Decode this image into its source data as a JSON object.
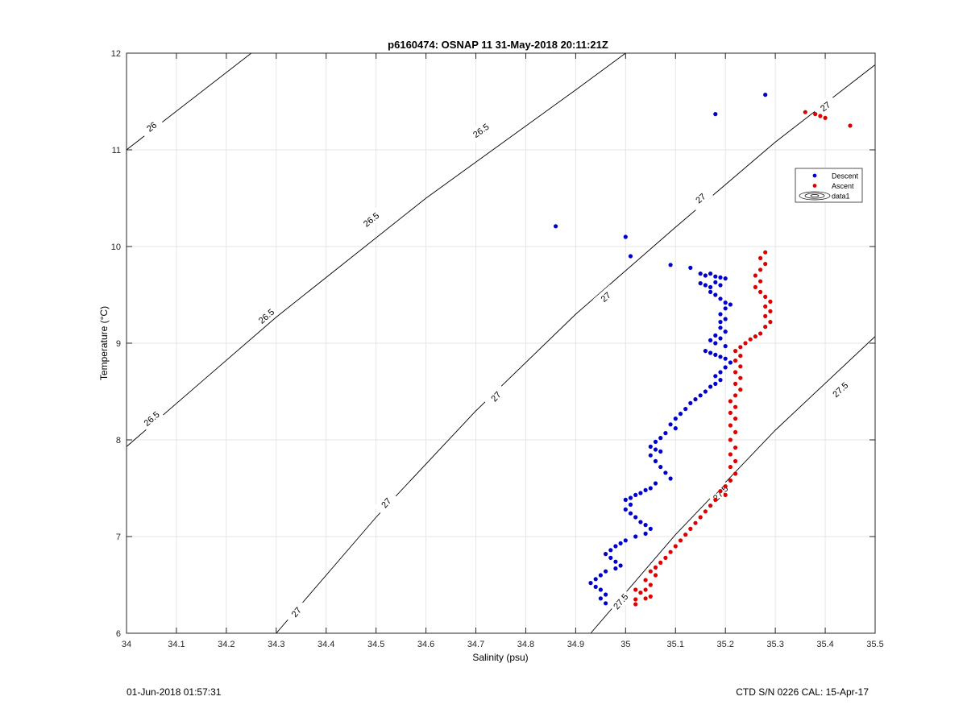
{
  "figure": {
    "footer_left": "01-Jun-2018 01:57:31",
    "footer_right": "CTD S/N 0226  CAL: 15-Apr-17"
  },
  "chart_data": {
    "type": "scatter",
    "title": "p6160474: OSNAP 11 31-May-2018 20:11:21Z",
    "xlabel": "Salinity (psu)",
    "ylabel": "Temperature (°C)",
    "xlim": [
      34,
      35.5
    ],
    "ylim": [
      6,
      12
    ],
    "xticks": [
      34,
      34.1,
      34.2,
      34.3,
      34.4,
      34.5,
      34.6,
      34.7,
      34.8,
      34.9,
      35,
      35.1,
      35.2,
      35.3,
      35.4,
      35.5
    ],
    "xtick_labels": [
      "34",
      "34.1",
      "34.2",
      "34.3",
      "34.4",
      "34.5",
      "34.6",
      "34.7",
      "34.8",
      "34.9",
      "35",
      "35.1",
      "35.2",
      "35.3",
      "35.4",
      "35.5"
    ],
    "yticks": [
      6,
      7,
      8,
      9,
      10,
      11,
      12
    ],
    "ytick_labels": [
      "6",
      "7",
      "8",
      "9",
      "10",
      "11",
      "12"
    ],
    "grid": true,
    "legend": {
      "placement": "right",
      "entries": [
        {
          "name": "Descent",
          "marker": "dot",
          "color": "#0000cc"
        },
        {
          "name": "Ascent",
          "marker": "dot",
          "color": "#dd0000"
        },
        {
          "name": "data1",
          "marker": "contour"
        }
      ]
    },
    "contours": [
      {
        "level": 26,
        "label": "26",
        "points": [
          [
            34.0,
            11.0
          ],
          [
            34.25,
            12.0
          ]
        ],
        "labels_at": [
          [
            34.05,
            11.24
          ]
        ]
      },
      {
        "level": 26.5,
        "label": "26.5",
        "points": [
          [
            34.0,
            7.93
          ],
          [
            34.3,
            9.27
          ],
          [
            34.6,
            10.5
          ],
          [
            34.9,
            11.62
          ],
          [
            35.0,
            12.0
          ]
        ],
        "labels_at": [
          [
            34.05,
            8.22
          ],
          [
            34.28,
            9.28
          ],
          [
            34.49,
            10.28
          ],
          [
            34.71,
            11.2
          ]
        ]
      },
      {
        "level": 27,
        "label": "27",
        "points": [
          [
            34.3,
            6.0
          ],
          [
            34.5,
            7.2
          ],
          [
            34.7,
            8.3
          ],
          [
            34.9,
            9.3
          ],
          [
            35.1,
            10.2
          ],
          [
            35.3,
            11.08
          ],
          [
            35.5,
            11.88
          ]
        ],
        "labels_at": [
          [
            34.34,
            6.22
          ],
          [
            34.52,
            7.35
          ],
          [
            34.74,
            8.45
          ],
          [
            34.96,
            9.48
          ],
          [
            35.15,
            10.5
          ],
          [
            35.4,
            11.45
          ]
        ]
      },
      {
        "level": 27.5,
        "label": "27.5",
        "points": [
          [
            34.93,
            6.0
          ],
          [
            35.1,
            7.02
          ],
          [
            35.3,
            8.1
          ],
          [
            35.5,
            9.07
          ]
        ],
        "labels_at": [
          [
            34.99,
            6.33
          ],
          [
            35.19,
            7.45
          ],
          [
            35.43,
            8.52
          ]
        ]
      }
    ],
    "series": [
      {
        "name": "Descent",
        "color": "#0000cc",
        "points": [
          [
            34.86,
            10.21
          ],
          [
            35.0,
            10.1
          ],
          [
            35.01,
            9.9
          ],
          [
            35.09,
            9.81
          ],
          [
            35.18,
            11.37
          ],
          [
            35.28,
            11.57
          ],
          [
            35.13,
            9.78
          ],
          [
            35.15,
            9.72
          ],
          [
            35.16,
            9.7
          ],
          [
            35.17,
            9.72
          ],
          [
            35.18,
            9.69
          ],
          [
            35.19,
            9.68
          ],
          [
            35.2,
            9.67
          ],
          [
            35.15,
            9.62
          ],
          [
            35.16,
            9.6
          ],
          [
            35.17,
            9.58
          ],
          [
            35.18,
            9.63
          ],
          [
            35.19,
            9.6
          ],
          [
            35.17,
            9.53
          ],
          [
            35.18,
            9.5
          ],
          [
            35.19,
            9.46
          ],
          [
            35.2,
            9.42
          ],
          [
            35.21,
            9.4
          ],
          [
            35.2,
            9.36
          ],
          [
            35.19,
            9.3
          ],
          [
            35.2,
            9.25
          ],
          [
            35.19,
            9.22
          ],
          [
            35.19,
            9.16
          ],
          [
            35.2,
            9.12
          ],
          [
            35.18,
            9.08
          ],
          [
            35.17,
            9.03
          ],
          [
            35.18,
            9.0
          ],
          [
            35.19,
            9.05
          ],
          [
            35.2,
            8.97
          ],
          [
            35.16,
            8.92
          ],
          [
            35.17,
            8.9
          ],
          [
            35.18,
            8.88
          ],
          [
            35.19,
            8.86
          ],
          [
            35.2,
            8.84
          ],
          [
            35.21,
            8.8
          ],
          [
            35.2,
            8.75
          ],
          [
            35.19,
            8.7
          ],
          [
            35.18,
            8.66
          ],
          [
            35.19,
            8.62
          ],
          [
            35.18,
            8.58
          ],
          [
            35.17,
            8.55
          ],
          [
            35.16,
            8.5
          ],
          [
            35.15,
            8.46
          ],
          [
            35.14,
            8.42
          ],
          [
            35.13,
            8.38
          ],
          [
            35.12,
            8.32
          ],
          [
            35.11,
            8.27
          ],
          [
            35.1,
            8.22
          ],
          [
            35.09,
            8.16
          ],
          [
            35.1,
            8.12
          ],
          [
            35.08,
            8.07
          ],
          [
            35.07,
            8.02
          ],
          [
            35.06,
            7.98
          ],
          [
            35.05,
            7.93
          ],
          [
            35.06,
            7.9
          ],
          [
            35.07,
            7.88
          ],
          [
            35.05,
            7.84
          ],
          [
            35.06,
            7.78
          ],
          [
            35.07,
            7.72
          ],
          [
            35.08,
            7.66
          ],
          [
            35.09,
            7.6
          ],
          [
            35.06,
            7.55
          ],
          [
            35.05,
            7.5
          ],
          [
            35.04,
            7.48
          ],
          [
            35.03,
            7.45
          ],
          [
            35.02,
            7.43
          ],
          [
            35.01,
            7.4
          ],
          [
            35.0,
            7.38
          ],
          [
            35.01,
            7.33
          ],
          [
            35.0,
            7.28
          ],
          [
            35.01,
            7.24
          ],
          [
            35.02,
            7.2
          ],
          [
            35.03,
            7.15
          ],
          [
            35.04,
            7.12
          ],
          [
            35.05,
            7.08
          ],
          [
            35.04,
            7.03
          ],
          [
            35.02,
            7.0
          ],
          [
            35.0,
            6.96
          ],
          [
            34.99,
            6.93
          ],
          [
            34.98,
            6.9
          ],
          [
            34.97,
            6.86
          ],
          [
            34.96,
            6.82
          ],
          [
            34.97,
            6.78
          ],
          [
            34.98,
            6.74
          ],
          [
            34.99,
            6.7
          ],
          [
            34.98,
            6.67
          ],
          [
            34.96,
            6.64
          ],
          [
            34.95,
            6.6
          ],
          [
            34.94,
            6.56
          ],
          [
            34.93,
            6.52
          ],
          [
            34.94,
            6.48
          ],
          [
            34.95,
            6.45
          ],
          [
            34.96,
            6.4
          ],
          [
            34.95,
            6.36
          ],
          [
            34.96,
            6.31
          ]
        ]
      },
      {
        "name": "Ascent",
        "color": "#dd0000",
        "points": [
          [
            35.45,
            11.25
          ],
          [
            35.36,
            11.39
          ],
          [
            35.38,
            11.37
          ],
          [
            35.39,
            11.35
          ],
          [
            35.4,
            11.33
          ],
          [
            35.28,
            9.94
          ],
          [
            35.27,
            9.88
          ],
          [
            35.28,
            9.82
          ],
          [
            35.27,
            9.76
          ],
          [
            35.26,
            9.7
          ],
          [
            35.27,
            9.64
          ],
          [
            35.26,
            9.58
          ],
          [
            35.27,
            9.53
          ],
          [
            35.28,
            9.48
          ],
          [
            35.29,
            9.43
          ],
          [
            35.28,
            9.38
          ],
          [
            35.29,
            9.33
          ],
          [
            35.28,
            9.28
          ],
          [
            35.29,
            9.22
          ],
          [
            35.28,
            9.17
          ],
          [
            35.27,
            9.1
          ],
          [
            35.26,
            9.07
          ],
          [
            35.25,
            9.04
          ],
          [
            35.24,
            9.0
          ],
          [
            35.23,
            8.96
          ],
          [
            35.22,
            8.92
          ],
          [
            35.23,
            8.87
          ],
          [
            35.22,
            8.82
          ],
          [
            35.23,
            8.76
          ],
          [
            35.22,
            8.7
          ],
          [
            35.23,
            8.64
          ],
          [
            35.22,
            8.58
          ],
          [
            35.23,
            8.52
          ],
          [
            35.22,
            8.46
          ],
          [
            35.21,
            8.4
          ],
          [
            35.22,
            8.34
          ],
          [
            35.21,
            8.28
          ],
          [
            35.22,
            8.22
          ],
          [
            35.21,
            8.15
          ],
          [
            35.22,
            8.08
          ],
          [
            35.21,
            8.0
          ],
          [
            35.22,
            7.92
          ],
          [
            35.21,
            7.85
          ],
          [
            35.22,
            7.78
          ],
          [
            35.21,
            7.72
          ],
          [
            35.22,
            7.65
          ],
          [
            35.21,
            7.58
          ],
          [
            35.2,
            7.52
          ],
          [
            35.19,
            7.47
          ],
          [
            35.2,
            7.43
          ],
          [
            35.18,
            7.38
          ],
          [
            35.17,
            7.32
          ],
          [
            35.16,
            7.26
          ],
          [
            35.15,
            7.2
          ],
          [
            35.14,
            7.14
          ],
          [
            35.13,
            7.08
          ],
          [
            35.12,
            7.02
          ],
          [
            35.11,
            6.96
          ],
          [
            35.1,
            6.9
          ],
          [
            35.09,
            6.84
          ],
          [
            35.08,
            6.78
          ],
          [
            35.07,
            6.73
          ],
          [
            35.06,
            6.68
          ],
          [
            35.05,
            6.64
          ],
          [
            35.06,
            6.6
          ],
          [
            35.04,
            6.55
          ],
          [
            35.05,
            6.5
          ],
          [
            35.04,
            6.45
          ],
          [
            35.03,
            6.42
          ],
          [
            35.02,
            6.45
          ],
          [
            35.05,
            6.38
          ],
          [
            35.04,
            6.36
          ],
          [
            35.02,
            6.35
          ],
          [
            35.02,
            6.3
          ]
        ]
      }
    ]
  }
}
